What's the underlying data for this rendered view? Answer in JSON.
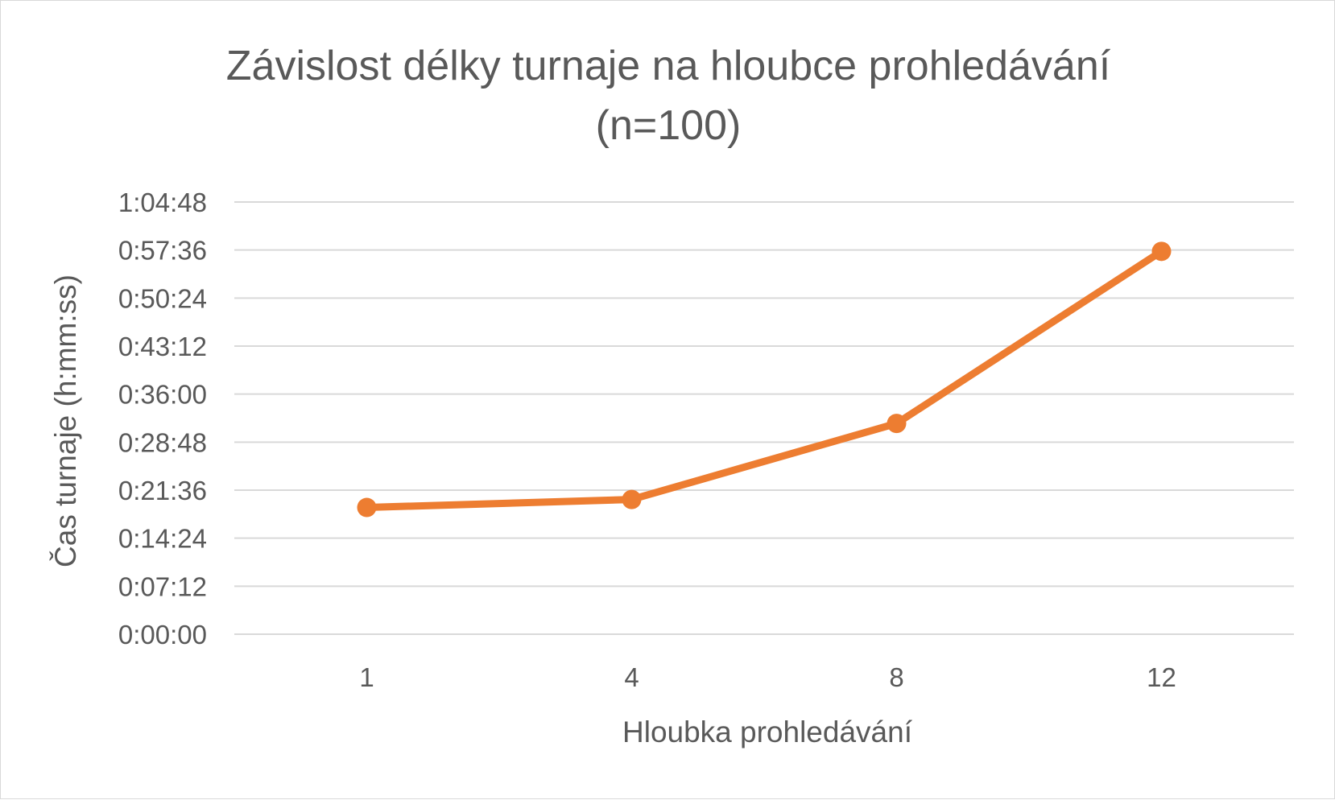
{
  "colors": {
    "series": "#ED7D31",
    "grid": "#D9D9D9",
    "text": "#595959",
    "border": "#D9D9D9"
  },
  "chart_data": {
    "type": "line",
    "title_lines": [
      "Závislost délky turnaje na hloubce prohledávání",
      "(n=100)"
    ],
    "xlabel": "Hloubka prohledávání",
    "ylabel": "Čas turnaje (h:mm:ss)",
    "categories": [
      "1",
      "4",
      "8",
      "12"
    ],
    "series": [
      {
        "values": [
          "0:19:00",
          "0:20:12",
          "0:31:36",
          "0:57:24"
        ],
        "values_seconds": [
          1140,
          1212,
          1896,
          3444
        ],
        "color": "#ED7D31",
        "markers": true
      }
    ],
    "y_ticks": [
      "0:00:00",
      "0:07:12",
      "0:14:24",
      "0:21:36",
      "0:28:48",
      "0:36:00",
      "0:43:12",
      "0:50:24",
      "0:57:36",
      "1:04:48"
    ],
    "ylim_seconds": [
      0,
      3888
    ],
    "y_tick_step_seconds": 432,
    "grid": true,
    "legend": "none"
  }
}
